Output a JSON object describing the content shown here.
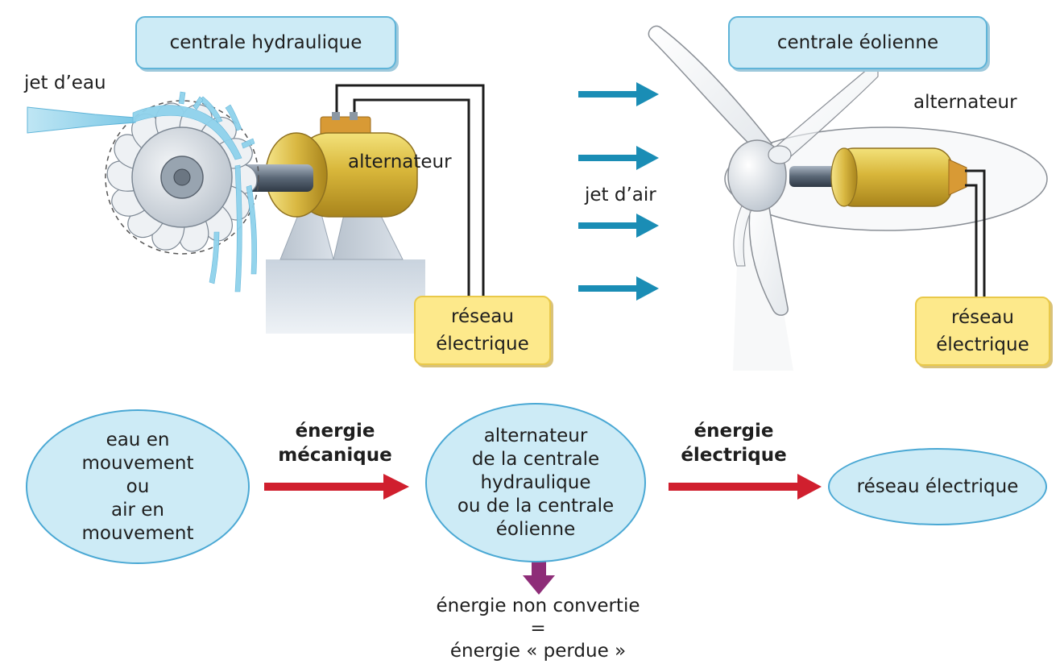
{
  "top": {
    "hydro": {
      "title": "centrale hydraulique",
      "water_jet_label": "jet d’eau",
      "alternator_label": "alternateur",
      "grid_line1": "réseau",
      "grid_line2": "électrique"
    },
    "wind": {
      "title": "centrale éolienne",
      "air_jet_label": "jet d’air",
      "alternator_label": "alternateur",
      "grid_line1": "réseau",
      "grid_line2": "électrique"
    }
  },
  "flow": {
    "source_lines": [
      "eau en",
      "mouvement",
      "ou",
      "air en",
      "mouvement"
    ],
    "arrow1_lines": [
      "énergie",
      "mécanique"
    ],
    "converter_lines": [
      "alternateur",
      "de la centrale",
      "hydraulique",
      "ou de la centrale",
      "éolienne"
    ],
    "arrow2_lines": [
      "énergie",
      "électrique"
    ],
    "target": "réseau électrique",
    "loss_lines": [
      "énergie non convertie",
      "=",
      "énergie « perdue »"
    ]
  },
  "colors": {
    "box_fill": "#cdebf6",
    "box_border": "#5fb4d8",
    "grid_fill": "#fde98b",
    "wind_arrow": "#1a8db5",
    "energy_arrow": "#d01f2e",
    "loss_arrow": "#8e2d78"
  }
}
